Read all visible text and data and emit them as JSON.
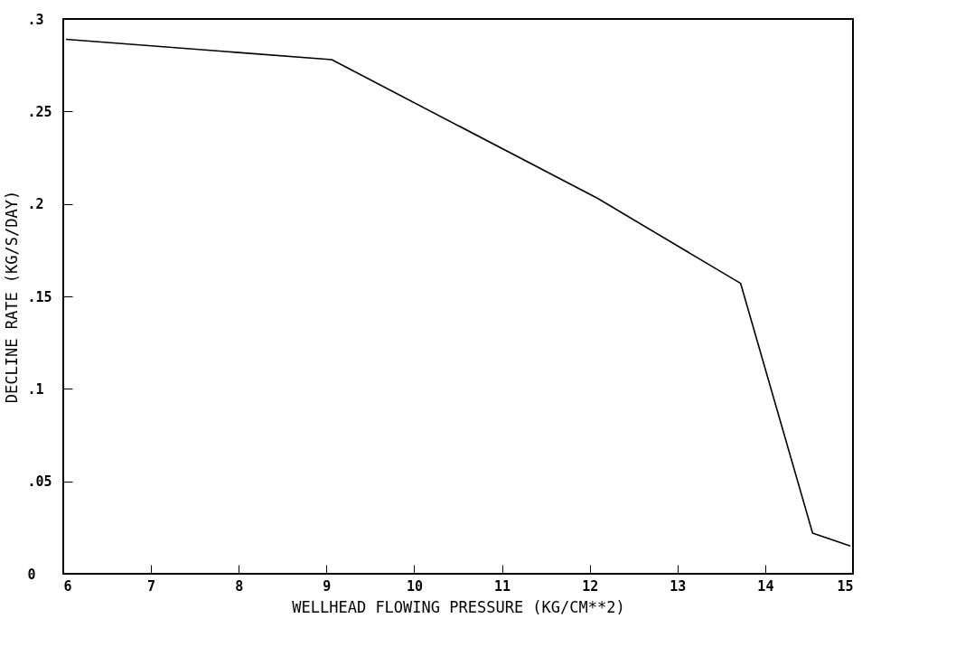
{
  "chart_data": {
    "type": "line",
    "xlabel": "WELLHEAD FLOWING PRESSURE (KG/CM**2)",
    "ylabel": "DECLINE RATE (KG/S/DAY)",
    "x": [
      6.03,
      9.06,
      12.09,
      13.72,
      14.54,
      14.97
    ],
    "series": [
      {
        "color": "#000000",
        "values": [
          0.289,
          0.278,
          0.203,
          0.157,
          0.022,
          0.015
        ]
      }
    ],
    "xlim": [
      6,
      15
    ],
    "xticks": [
      6,
      7,
      8,
      9,
      10,
      11,
      12,
      13,
      14,
      15
    ],
    "ylim": [
      0,
      0.3
    ],
    "yticks": [
      {
        "value": 0,
        "label": "0"
      },
      {
        "value": 0.05,
        "label": ".05"
      },
      {
        "value": 0.1,
        "label": ".1"
      },
      {
        "value": 0.15,
        "label": ".15"
      },
      {
        "value": 0.2,
        "label": ".2"
      },
      {
        "value": 0.25,
        "label": ".25"
      },
      {
        "value": 0.3,
        "label": ".3"
      }
    ],
    "grid": false,
    "line_style": "solid"
  }
}
